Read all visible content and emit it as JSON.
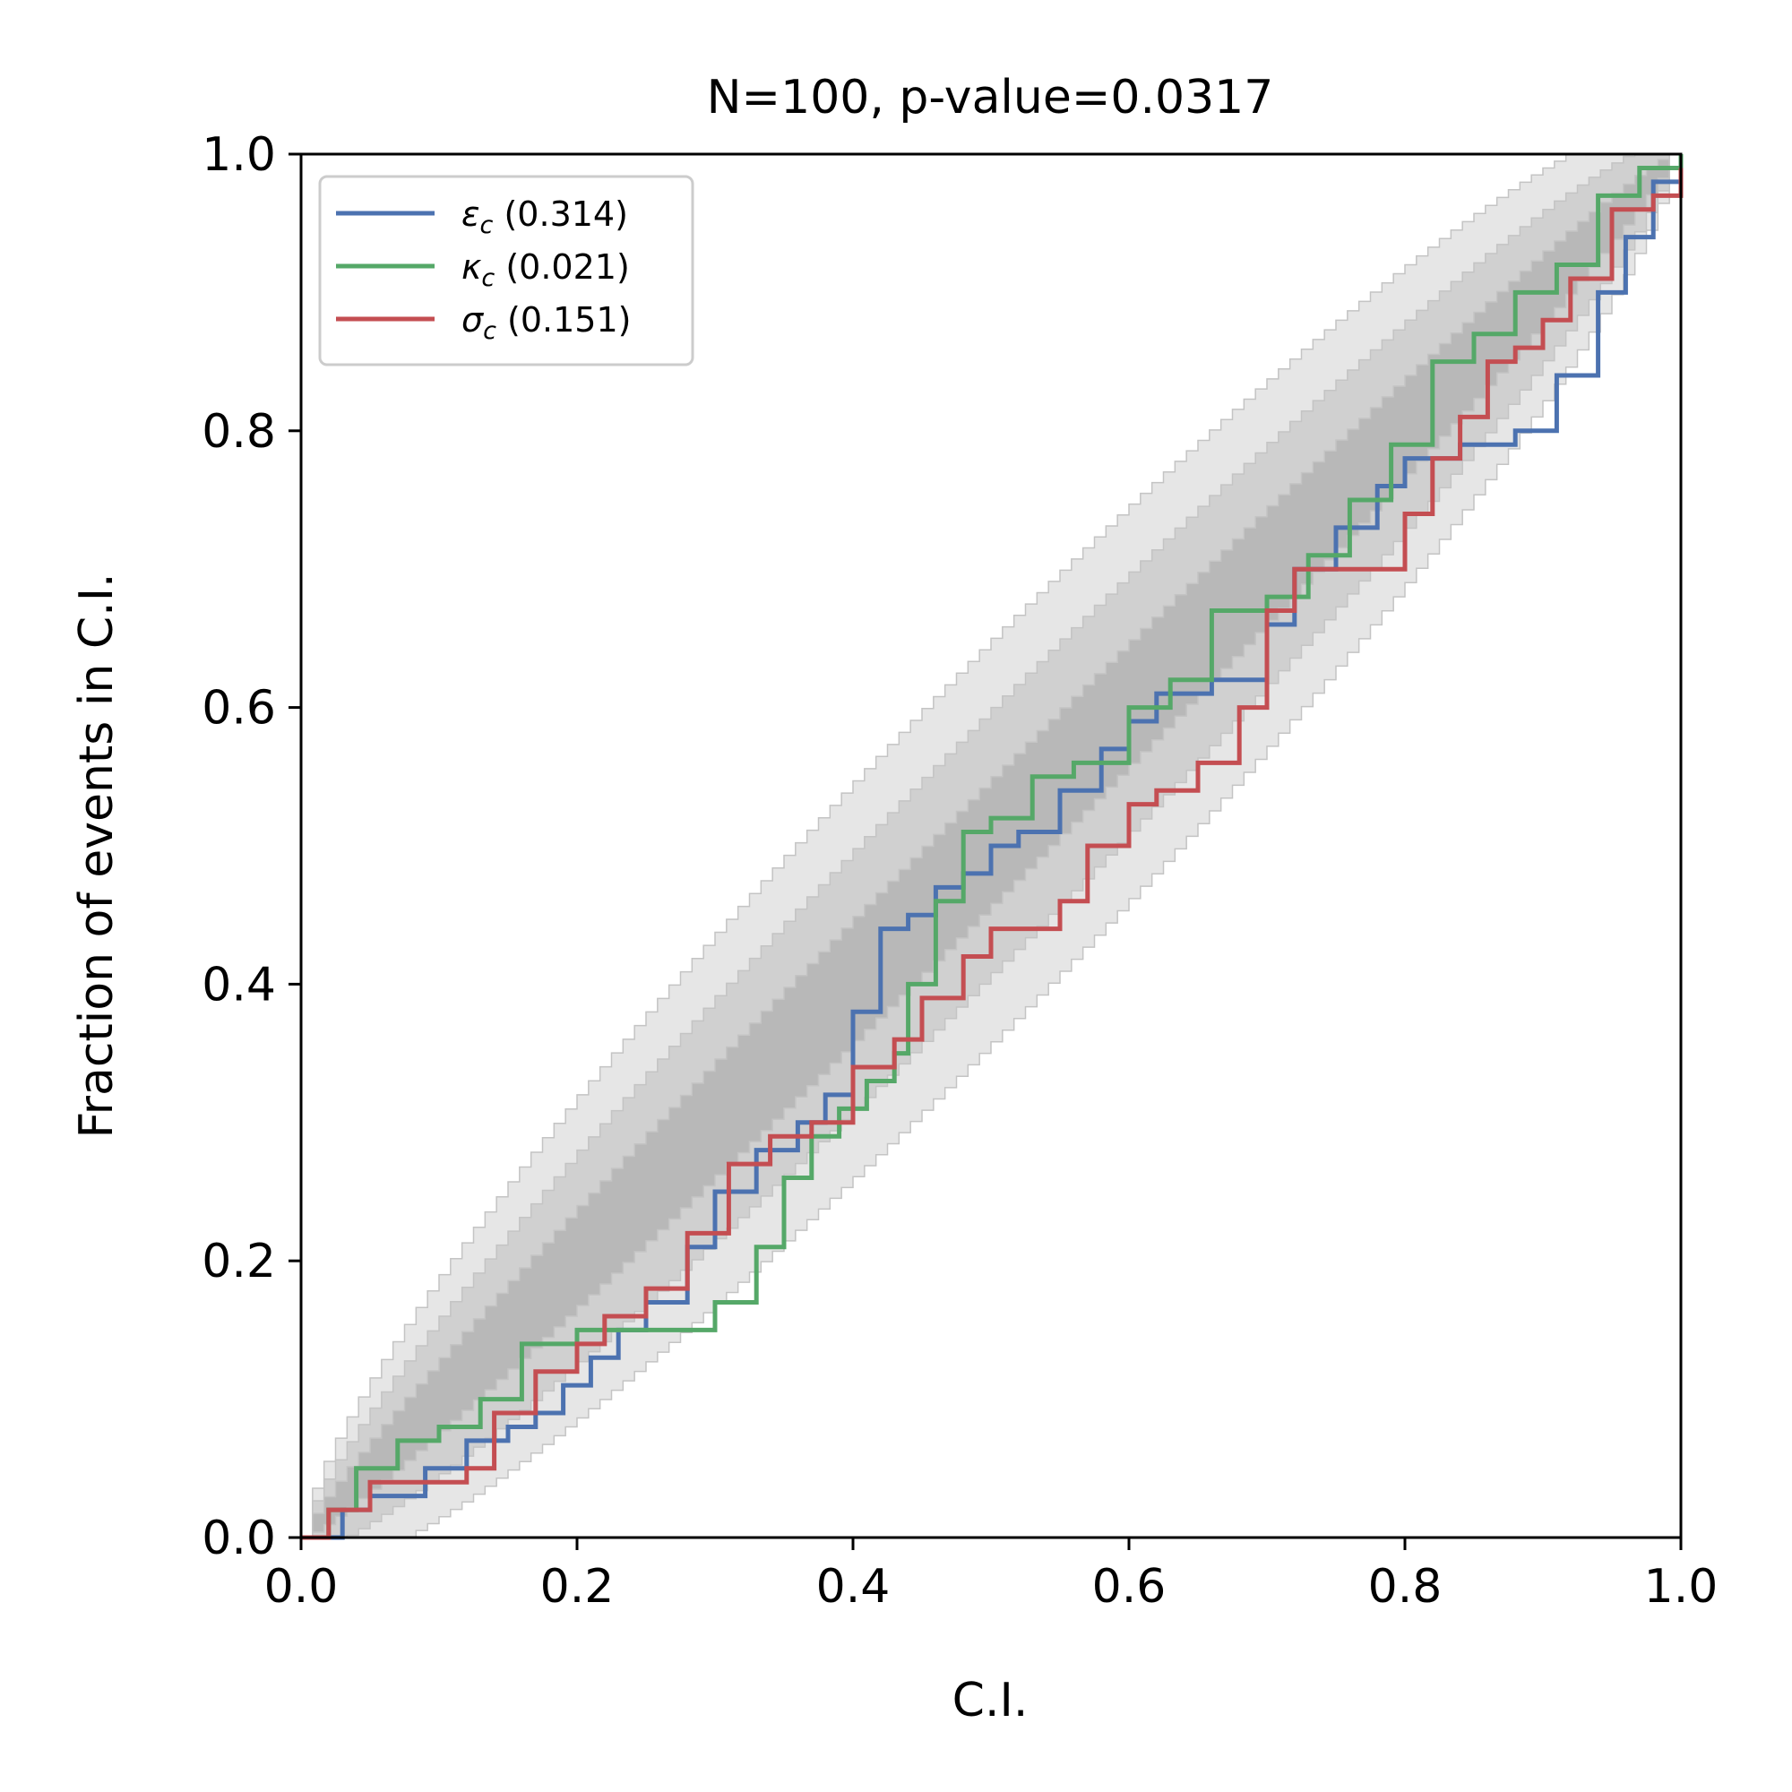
{
  "chart_data": {
    "type": "line",
    "title": "N=100, p-value=0.0317",
    "xlabel": "C.I.",
    "ylabel": "Fraction of events in C.I.",
    "xlim": [
      0,
      1
    ],
    "ylim": [
      0,
      1
    ],
    "xticks": [
      "0.0",
      "0.2",
      "0.4",
      "0.6",
      "0.8",
      "1.0"
    ],
    "yticks": [
      "0.0",
      "0.2",
      "0.4",
      "0.6",
      "0.8",
      "1.0"
    ],
    "grid": false,
    "legend_position": "upper-left",
    "confidence_bands": [
      {
        "level": "1-sigma",
        "color": "#b8b8b8"
      },
      {
        "level": "2-sigma",
        "color": "#d0d0d0"
      },
      {
        "level": "3-sigma",
        "color": "#e6e6e6"
      }
    ],
    "series": [
      {
        "name": "ε_c (0.314)",
        "symbol": "ε",
        "subscript": "c",
        "value_label": " (0.314)",
        "color": "#4c72b0",
        "x": [
          0,
          0.03,
          0.05,
          0.09,
          0.12,
          0.15,
          0.17,
          0.19,
          0.21,
          0.23,
          0.25,
          0.28,
          0.3,
          0.33,
          0.36,
          0.38,
          0.4,
          0.42,
          0.44,
          0.46,
          0.48,
          0.5,
          0.52,
          0.55,
          0.58,
          0.6,
          0.62,
          0.66,
          0.7,
          0.72,
          0.75,
          0.78,
          0.8,
          0.84,
          0.88,
          0.91,
          0.94,
          0.96,
          0.98,
          1.0
        ],
        "y": [
          0,
          0.02,
          0.03,
          0.05,
          0.07,
          0.08,
          0.09,
          0.11,
          0.13,
          0.15,
          0.17,
          0.21,
          0.25,
          0.28,
          0.3,
          0.32,
          0.38,
          0.44,
          0.45,
          0.47,
          0.48,
          0.5,
          0.51,
          0.54,
          0.57,
          0.59,
          0.61,
          0.62,
          0.66,
          0.7,
          0.73,
          0.76,
          0.78,
          0.79,
          0.8,
          0.84,
          0.9,
          0.94,
          0.98,
          1.0
        ]
      },
      {
        "name": "κ_c (0.021)",
        "symbol": "κ",
        "subscript": "c",
        "value_label": " (0.021)",
        "color": "#55a868",
        "x": [
          0,
          0.02,
          0.04,
          0.07,
          0.1,
          0.13,
          0.16,
          0.2,
          0.25,
          0.3,
          0.33,
          0.35,
          0.37,
          0.39,
          0.41,
          0.43,
          0.44,
          0.46,
          0.48,
          0.5,
          0.53,
          0.56,
          0.6,
          0.63,
          0.66,
          0.7,
          0.73,
          0.76,
          0.79,
          0.82,
          0.85,
          0.88,
          0.91,
          0.94,
          0.97,
          1.0
        ],
        "y": [
          0,
          0.02,
          0.05,
          0.07,
          0.08,
          0.1,
          0.14,
          0.15,
          0.15,
          0.17,
          0.21,
          0.26,
          0.29,
          0.31,
          0.33,
          0.35,
          0.4,
          0.46,
          0.51,
          0.52,
          0.55,
          0.56,
          0.6,
          0.62,
          0.67,
          0.68,
          0.71,
          0.75,
          0.79,
          0.85,
          0.87,
          0.9,
          0.92,
          0.97,
          0.99,
          1.0
        ]
      },
      {
        "name": "σ_c (0.151)",
        "symbol": "σ",
        "subscript": "c",
        "value_label": " (0.151)",
        "color": "#c44e52",
        "x": [
          0,
          0.02,
          0.05,
          0.08,
          0.12,
          0.14,
          0.17,
          0.2,
          0.22,
          0.25,
          0.28,
          0.31,
          0.34,
          0.37,
          0.4,
          0.43,
          0.45,
          0.48,
          0.5,
          0.55,
          0.57,
          0.6,
          0.62,
          0.65,
          0.68,
          0.7,
          0.72,
          0.76,
          0.8,
          0.82,
          0.84,
          0.86,
          0.88,
          0.9,
          0.92,
          0.95,
          0.98,
          1.0
        ],
        "y": [
          0,
          0.02,
          0.04,
          0.04,
          0.05,
          0.09,
          0.12,
          0.14,
          0.16,
          0.18,
          0.22,
          0.27,
          0.29,
          0.3,
          0.34,
          0.36,
          0.39,
          0.42,
          0.44,
          0.46,
          0.5,
          0.53,
          0.54,
          0.56,
          0.6,
          0.67,
          0.7,
          0.7,
          0.74,
          0.78,
          0.81,
          0.85,
          0.86,
          0.88,
          0.91,
          0.96,
          0.97,
          0.99
        ]
      }
    ]
  }
}
